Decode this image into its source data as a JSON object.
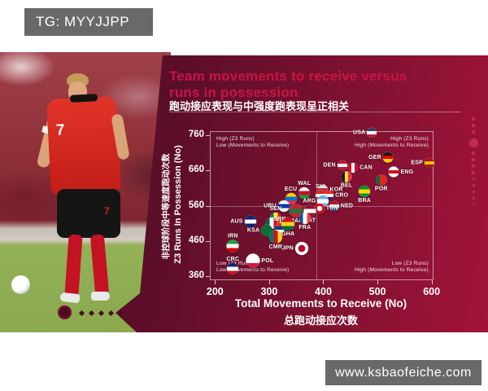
{
  "page": {
    "tg_label": "TG: MYYJJPP",
    "watermark": "www.ksbaofeiche.com"
  },
  "infographic": {
    "title_line1": "Team movements to receive versus",
    "title_line2": "runs in possession",
    "subtitle_zh": "跑动接应表现与中强度跑表现呈正相关",
    "player_shirt_number": "7",
    "colors": {
      "panel_dark": "#470a20",
      "panel_bright": "#a21339",
      "accent_red": "#c81445",
      "badge_gray": "#696969"
    }
  },
  "chart_data": {
    "type": "scatter",
    "title": "Team movements to receive versus runs in possession",
    "xlabel": "Total Movements to Receive (No)",
    "xlabel_zh": "总跑动接应次数",
    "ylabel": "Z3 Runs In Possession (No)",
    "ylabel_zh": "非控球阶段中等速度跑动次数",
    "xlim": [
      192,
      602
    ],
    "ylim": [
      351,
      769
    ],
    "xticks": [
      200,
      300,
      400,
      500,
      600
    ],
    "yticks": [
      360,
      460,
      560,
      660,
      760
    ],
    "grid": false,
    "dividers": {
      "x": 387,
      "y": 560
    },
    "quadrant_labels": {
      "top_left": [
        "High (Z3 Runs)",
        "Low (Movements to Receive)"
      ],
      "top_right": [
        "High (Z3 Runs)",
        "High (Movements to Receive)"
      ],
      "bottom_left": [
        "Low (Z3 Runs)",
        "Low (Movements to Receive)"
      ],
      "bottom_right": [
        "Low (Z3 Runs)",
        "High (Movements to Receive)"
      ]
    },
    "points": [
      {
        "code": "USA",
        "x": 490,
        "y": 766,
        "r": 6,
        "dir": "h",
        "colors": [
          "#3c3b6e",
          "#ffffff",
          "#b22234"
        ],
        "label_pos": "left"
      },
      {
        "code": "GER",
        "x": 520,
        "y": 697,
        "r": 6.5,
        "dir": "h",
        "colors": [
          "#1a1a1a",
          "#dd0000",
          "#ffce00"
        ],
        "label_pos": "left"
      },
      {
        "code": "ESP",
        "x": 596,
        "y": 681,
        "r": 6,
        "dir": "h",
        "colors": [
          "#aa151b",
          "#f1bf00",
          "#aa151b"
        ],
        "label_pos": "left"
      },
      {
        "code": "ENG",
        "x": 530,
        "y": 655,
        "r": 6.5,
        "dir": "h",
        "colors": [
          "#ffffff",
          "#ce1124",
          "#ffffff"
        ],
        "label_pos": "right"
      },
      {
        "code": "DEN",
        "x": 435,
        "y": 674,
        "r": 6,
        "dir": "h",
        "colors": [
          "#c8102e",
          "#ffffff",
          "#c8102e"
        ],
        "label_pos": "left"
      },
      {
        "code": "CAN",
        "x": 455,
        "y": 667,
        "r": 6,
        "dir": "v",
        "colors": [
          "#d80621",
          "#ffffff",
          "#d80621"
        ],
        "label_pos": "right"
      },
      {
        "code": "BEL",
        "x": 443,
        "y": 641,
        "r": 6.5,
        "dir": "v",
        "colors": [
          "#1a1a1a",
          "#fdda24",
          "#ef3340"
        ],
        "label_pos": "below"
      },
      {
        "code": "POR",
        "x": 507,
        "y": 632,
        "r": 6.5,
        "dir": "v",
        "colors": [
          "#046a38",
          "#da291c",
          "#da291c"
        ],
        "label_pos": "below"
      },
      {
        "code": "KOR",
        "x": 400,
        "y": 605,
        "r": 6,
        "dir": "h",
        "colors": [
          "#ffffff",
          "#cd2e3a",
          "#0047a0"
        ],
        "label_pos": "right"
      },
      {
        "code": "CRO",
        "x": 410,
        "y": 590,
        "r": 6,
        "dir": "h",
        "colors": [
          "#ff2222",
          "#ffffff",
          "#171796"
        ],
        "label_pos": "right"
      },
      {
        "code": "BRA",
        "x": 476,
        "y": 600,
        "r": 7,
        "dir": "h",
        "colors": [
          "#009739",
          "#fedd00",
          "#009739"
        ],
        "label_pos": "below"
      },
      {
        "code": "NED",
        "x": 420,
        "y": 558,
        "r": 6,
        "dir": "h",
        "colors": [
          "#ae1c28",
          "#ffffff",
          "#21468b"
        ],
        "label_pos": "right"
      },
      {
        "code": "WAL",
        "x": 365,
        "y": 595,
        "r": 7,
        "dir": "h",
        "colors": [
          "#ffffff",
          "#c8102e",
          "#00ab39"
        ],
        "label_pos": "above"
      },
      {
        "code": "SUI",
        "x": 395,
        "y": 588,
        "r": 6,
        "dir": "h",
        "colors": [
          "#da291c",
          "#ffffff",
          "#da291c"
        ],
        "label_pos": "above"
      },
      {
        "code": "ECU",
        "x": 340,
        "y": 580,
        "r": 7,
        "dir": "h",
        "colors": [
          "#ffd100",
          "#0072ce",
          "#ef3340"
        ],
        "label_pos": "above"
      },
      {
        "code": "ARG",
        "x": 400,
        "y": 572,
        "r": 7,
        "dir": "h",
        "colors": [
          "#74acdf",
          "#ffffff",
          "#74acdf"
        ],
        "label_pos": "left"
      },
      {
        "code": "URU",
        "x": 327,
        "y": 558,
        "r": 7,
        "dir": "h",
        "colors": [
          "#ffffff",
          "#0038a8",
          "#ffffff"
        ],
        "label_pos": "left"
      },
      {
        "code": "TUN",
        "x": 393,
        "y": 551,
        "r": 6,
        "special": "dot",
        "colors": [
          "#e70013",
          "#ffffff"
        ],
        "label_pos": "right"
      },
      {
        "code": "QAT",
        "x": 375,
        "y": 544,
        "r": 7.5,
        "dir": "h",
        "colors": [
          "#8a1538",
          "#ffffff",
          "#8a1538"
        ],
        "label_pos": "below"
      },
      {
        "code": "MAR",
        "x": 350,
        "y": 544,
        "r": 8,
        "dir": "h",
        "colors": [
          "#c1272d",
          "#1a7a3c",
          "#c1272d"
        ],
        "label_pos": "below"
      },
      {
        "code": "FRA",
        "x": 366,
        "y": 525,
        "r": 7,
        "dir": "v",
        "colors": [
          "#0055a4",
          "#ffffff",
          "#ef4135"
        ],
        "label_pos": "below"
      },
      {
        "code": "SEN",
        "x": 312,
        "y": 525,
        "r": 7,
        "dir": "v",
        "colors": [
          "#00853f",
          "#fdef42",
          "#e31b23"
        ],
        "label_pos": "above"
      },
      {
        "code": "AUS",
        "x": 265,
        "y": 516,
        "r": 7,
        "dir": "h",
        "colors": [
          "#00247d",
          "#ffffff",
          "#00247d"
        ],
        "label_pos": "left"
      },
      {
        "code": "MEX",
        "x": 305,
        "y": 511,
        "r": 7,
        "dir": "v",
        "colors": [
          "#006341",
          "#ffffff",
          "#ce1126"
        ],
        "label_pos": "right"
      },
      {
        "code": "SRB",
        "x": 320,
        "y": 497,
        "r": 6,
        "dir": "h",
        "colors": [
          "#c6363c",
          "#0c4076",
          "#ffffff"
        ],
        "label_pos": "above"
      },
      {
        "code": "KSA",
        "x": 296,
        "y": 490,
        "r": 7,
        "dir": "h",
        "colors": [
          "#0d6e35",
          "#0d6e35",
          "#0d6e35"
        ],
        "label_pos": "left"
      },
      {
        "code": "GHA",
        "x": 335,
        "y": 507,
        "r": 8,
        "dir": "h",
        "colors": [
          "#ce1126",
          "#fcd116",
          "#006b3f"
        ],
        "label_pos": "below"
      },
      {
        "code": "CMR",
        "x": 312,
        "y": 472,
        "r": 8,
        "dir": "v",
        "colors": [
          "#007a5e",
          "#ce1126",
          "#fcd116"
        ],
        "label_pos": "below"
      },
      {
        "code": "IRN",
        "x": 233,
        "y": 446,
        "r": 7.5,
        "dir": "h",
        "colors": [
          "#239f40",
          "#ffffff",
          "#da0000"
        ],
        "label_pos": "above"
      },
      {
        "code": "JPN",
        "x": 360,
        "y": 439,
        "r": 8,
        "special": "dot",
        "colors": [
          "#ffffff",
          "#bc002d"
        ],
        "label_pos": "left"
      },
      {
        "code": "POL",
        "x": 270,
        "y": 404,
        "r": 8.5,
        "dir": "h",
        "colors": [
          "#ffffff",
          "#ffffff",
          "#dc143c"
        ],
        "label_pos": "right"
      },
      {
        "code": "CRC",
        "x": 233,
        "y": 381,
        "r": 7,
        "dir": "h",
        "colors": [
          "#002b7f",
          "#ffffff",
          "#ce1126"
        ],
        "label_pos": "above"
      }
    ]
  }
}
